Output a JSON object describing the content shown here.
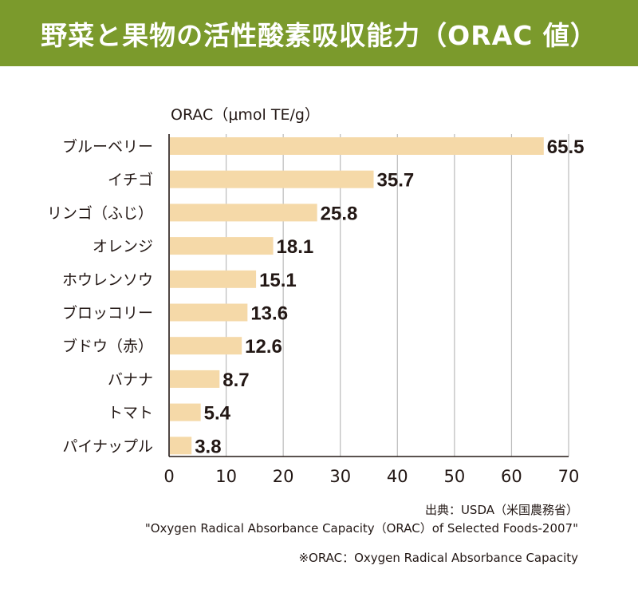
{
  "header": {
    "title": "野菜と果物の活性酸素吸収能力（ORAC 値）",
    "background": "#7b9a2c"
  },
  "chart_data": {
    "type": "bar",
    "orientation": "horizontal",
    "unit_label": "ORAC（μmol TE/g）",
    "categories": [
      "ブルーベリー",
      "イチゴ",
      "リンゴ（ふじ）",
      "オレンジ",
      "ホウレンソウ",
      "ブロッコリー",
      "ブドウ（赤）",
      "バナナ",
      "トマト",
      "パイナップル"
    ],
    "values": [
      65.5,
      35.7,
      25.8,
      18.1,
      15.1,
      13.6,
      12.6,
      8.7,
      5.4,
      3.8
    ],
    "value_labels": [
      "65.5",
      "35.7",
      "25.8",
      "18.1",
      "15.1",
      "13.6",
      "12.6",
      "8.7",
      "5.4",
      "3.8"
    ],
    "xlim": [
      0,
      70
    ],
    "xticks": [
      0,
      10,
      20,
      30,
      40,
      50,
      60,
      70
    ],
    "grid": true,
    "bar_color": "#f5d9a8",
    "grid_color": "#bbbbbb",
    "axis_color": "#231815"
  },
  "footer": {
    "source": "出典：USDA（米国農務省）",
    "reference": "\"Oxygen Radical Absorbance Capacity（ORAC）of Selected Foods-2007\"",
    "note": "※ORAC：Oxygen Radical Absorbance Capacity"
  }
}
